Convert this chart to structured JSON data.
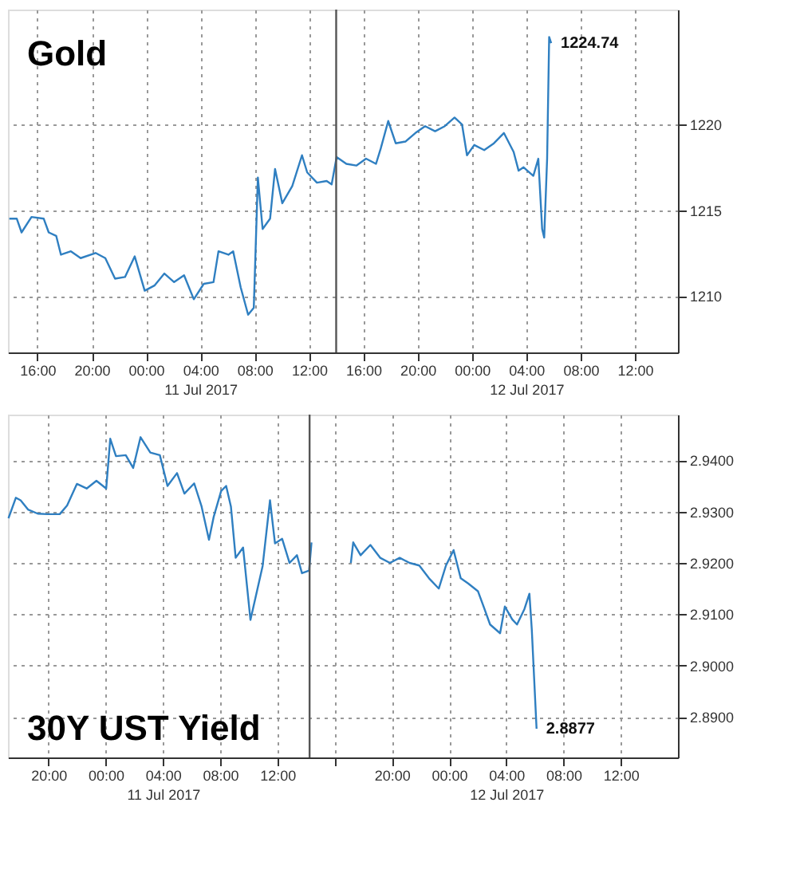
{
  "chart_data": [
    {
      "type": "line",
      "title": "Gold",
      "grid": true,
      "x": [
        "2017-07-10T13:56",
        "2017-07-10T14:29",
        "2017-07-10T14:50",
        "2017-07-10T15:34",
        "2017-07-10T16:28",
        "2017-07-10T16:50",
        "2017-07-10T17:23",
        "2017-07-10T17:44",
        "2017-07-10T18:28",
        "2017-07-10T19:11",
        "2017-07-10T20:17",
        "2017-07-10T21:00",
        "2017-07-10T21:43",
        "2017-07-10T22:27",
        "2017-07-10T23:10",
        "2017-07-10T23:54",
        "2017-07-11T00:37",
        "2017-07-11T01:21",
        "2017-07-11T02:04",
        "2017-07-11T02:48",
        "2017-07-11T03:31",
        "2017-07-11T04:15",
        "2017-07-11T04:58",
        "2017-07-11T05:20",
        "2017-07-11T06:04",
        "2017-07-11T06:25",
        "2017-07-11T06:58",
        "2017-07-11T07:31",
        "2017-07-11T07:56",
        "2017-07-11T08:14",
        "2017-07-11T08:35",
        "2017-07-11T09:08",
        "2017-07-11T09:30",
        "2017-07-11T10:02",
        "2017-07-11T10:46",
        "2017-07-11T11:29",
        "2017-07-11T11:52",
        "2017-07-11T12:35",
        "2017-07-11T13:18",
        "2017-07-11T13:40",
        "2017-07-11T14:02",
        "2017-07-11T14:45",
        "2017-07-11T15:29",
        "2017-07-11T16:12",
        "2017-07-11T16:56",
        "2017-07-11T17:17",
        "2017-07-11T17:50",
        "2017-07-11T18:23",
        "2017-07-11T19:06",
        "2017-07-11T19:50",
        "2017-07-11T20:33",
        "2017-07-11T21:17",
        "2017-07-11T22:00",
        "2017-07-11T22:43",
        "2017-07-11T23:16",
        "2017-07-11T23:38",
        "2017-07-12T00:10",
        "2017-07-12T00:54",
        "2017-07-12T01:37",
        "2017-07-12T02:21",
        "2017-07-12T03:04",
        "2017-07-12T03:26",
        "2017-07-12T03:48",
        "2017-07-12T04:31",
        "2017-07-12T04:53",
        "2017-07-12T05:10",
        "2017-07-12T05:19",
        "2017-07-12T05:32",
        "2017-07-12T05:41",
        "2017-07-12T05:50"
      ],
      "series": [
        {
          "color": "#2f7fc1",
          "values": [
            1214.5,
            1214.5,
            1213.7,
            1214.6,
            1214.5,
            1213.7,
            1213.5,
            1212.4,
            1212.6,
            1212.2,
            1212.5,
            1212.2,
            1211.0,
            1211.1,
            1212.3,
            1210.3,
            1210.6,
            1211.3,
            1210.8,
            1211.2,
            1209.8,
            1210.7,
            1210.8,
            1212.6,
            1212.4,
            1212.6,
            1210.5,
            1208.9,
            1209.3,
            1216.9,
            1213.9,
            1214.5,
            1217.4,
            1215.4,
            1216.4,
            1218.2,
            1217.2,
            1216.6,
            1216.7,
            1216.5,
            1218.1,
            1217.7,
            1217.6,
            1218.0,
            1217.7,
            1218.6,
            1220.2,
            1218.9,
            1219.0,
            1219.5,
            1219.9,
            1219.6,
            1219.9,
            1220.4,
            1220.0,
            1218.2,
            1218.8,
            1218.5,
            1218.9,
            1219.5,
            1218.4,
            1217.3,
            1217.5,
            1217.0,
            1218.0,
            1213.9,
            1213.4,
            1218.0,
            1225.1,
            1224.74
          ]
        }
      ],
      "xlim": [
        "2017-07-10T13:50",
        "2017-07-12T15:10"
      ],
      "xticks": [
        {
          "value": "2017-07-10T16:00",
          "label": "16:00"
        },
        {
          "value": "2017-07-10T20:00",
          "label": "20:00"
        },
        {
          "value": "2017-07-11T00:00",
          "label": "00:00"
        },
        {
          "value": "2017-07-11T04:00",
          "label": "04:00\n11 Jul 2017"
        },
        {
          "value": "2017-07-11T08:00",
          "label": "08:00"
        },
        {
          "value": "2017-07-11T12:00",
          "label": "12:00"
        },
        {
          "value": "2017-07-11T16:00",
          "label": "16:00"
        },
        {
          "value": "2017-07-11T20:00",
          "label": "20:00"
        },
        {
          "value": "2017-07-12T00:00",
          "label": "00:00"
        },
        {
          "value": "2017-07-12T04:00",
          "label": "04:00\n12 Jul 2017"
        },
        {
          "value": "2017-07-12T08:00",
          "label": "08:00"
        },
        {
          "value": "2017-07-12T12:00",
          "label": "12:00"
        }
      ],
      "ylim": [
        1206.7,
        1226.7
      ],
      "yticks": [
        1210,
        1215,
        1220
      ],
      "ref_lines": [
        {
          "axis": "x",
          "value": "2017-07-11T14:00",
          "color": "#555555"
        }
      ],
      "annotations": [
        {
          "text": "1224.74",
          "x": "2017-07-12T05:50",
          "y": 1224.74
        }
      ]
    },
    {
      "type": "line",
      "title": "30Y UST Yield",
      "grid": true,
      "x": [
        "2017-07-10T17:12",
        "2017-07-10T17:43",
        "2017-07-10T18:03",
        "2017-07-10T18:34",
        "2017-07-10T19:15",
        "2017-07-10T19:56",
        "2017-07-10T20:47",
        "2017-07-10T21:18",
        "2017-07-10T21:59",
        "2017-07-10T22:40",
        "2017-07-10T23:21",
        "2017-07-11T00:02",
        "2017-07-11T00:19",
        "2017-07-11T00:43",
        "2017-07-11T01:24",
        "2017-07-11T01:55",
        "2017-07-11T02:26",
        "2017-07-11T03:07",
        "2017-07-11T03:47",
        "2017-07-11T04:19",
        "2017-07-11T04:59",
        "2017-07-11T05:30",
        "2017-07-11T06:11",
        "2017-07-11T06:42",
        "2017-07-11T07:13",
        "2017-07-11T07:33",
        "2017-07-11T08:04",
        "2017-07-11T08:25",
        "2017-07-11T08:45",
        "2017-07-11T09:05",
        "2017-07-11T09:36",
        "2017-07-11T10:07",
        "2017-07-11T10:28",
        "2017-07-11T10:58",
        "2017-07-11T11:29",
        "2017-07-11T11:50",
        "2017-07-11T12:20",
        "2017-07-11T12:51",
        "2017-07-11T13:22",
        "2017-07-11T13:43",
        "2017-07-11T14:13",
        "2017-07-11T14:23",
        "2017-07-11T15:45",
        "2017-07-11T17:08",
        "2017-07-11T17:18",
        "2017-07-11T17:49",
        "2017-07-11T18:30",
        "2017-07-11T19:11",
        "2017-07-11T19:52",
        "2017-07-11T20:33",
        "2017-07-11T21:14",
        "2017-07-11T21:55",
        "2017-07-11T22:36",
        "2017-07-11T23:17",
        "2017-07-11T23:47",
        "2017-07-12T00:19",
        "2017-07-12T00:49",
        "2017-07-12T01:20",
        "2017-07-12T02:01",
        "2017-07-12T02:32",
        "2017-07-12T02:52",
        "2017-07-12T03:34",
        "2017-07-12T03:54",
        "2017-07-12T04:25",
        "2017-07-12T04:45",
        "2017-07-12T05:16",
        "2017-07-12T05:37",
        "2017-07-12T05:47",
        "2017-07-12T06:07"
      ],
      "series": [
        {
          "color": "#2f7fc1",
          "values": [
            2.9287,
            2.9327,
            2.9322,
            2.9304,
            2.9296,
            2.9295,
            2.9295,
            2.9312,
            2.9354,
            2.9345,
            2.936,
            2.9345,
            2.9442,
            2.9408,
            2.941,
            2.9385,
            2.9445,
            2.9415,
            2.941,
            2.935,
            2.9375,
            2.9335,
            2.9355,
            2.931,
            2.9245,
            2.929,
            2.934,
            2.935,
            2.931,
            2.921,
            2.923,
            2.9089,
            2.9132,
            2.9194,
            2.9322,
            2.9238,
            2.9247,
            2.92,
            2.9215,
            2.918,
            2.9185,
            2.924,
            null,
            2.92,
            2.924,
            2.9215,
            2.9235,
            2.921,
            2.92,
            2.921,
            2.92,
            2.9195,
            2.917,
            2.915,
            2.9195,
            2.9225,
            2.917,
            2.916,
            2.9145,
            2.9106,
            2.908,
            2.9063,
            2.9115,
            2.909,
            2.908,
            2.911,
            2.914,
            2.907,
            2.8877
          ]
        }
      ],
      "xlim": [
        "2017-07-10T17:10",
        "2017-07-12T16:00"
      ],
      "xticks": [
        {
          "value": "2017-07-10T20:00",
          "label": "20:00"
        },
        {
          "value": "2017-07-11T00:00",
          "label": "00:00"
        },
        {
          "value": "2017-07-11T04:00",
          "label": "04:00\n11 Jul 2017"
        },
        {
          "value": "2017-07-11T08:00",
          "label": "08:00"
        },
        {
          "value": "2017-07-11T12:00",
          "label": "12:00"
        },
        {
          "value": "2017-07-11T16:00",
          "label": null
        },
        {
          "value": "2017-07-11T20:00",
          "label": "20:00"
        },
        {
          "value": "2017-07-12T00:00",
          "label": "00:00"
        },
        {
          "value": "2017-07-12T04:00",
          "label": "04:00\n12 Jul 2017"
        },
        {
          "value": "2017-07-12T08:00",
          "label": "08:00"
        },
        {
          "value": "2017-07-12T12:00",
          "label": "12:00"
        }
      ],
      "ylim": [
        2.8821,
        2.9489
      ],
      "yticks": [
        {
          "value": 2.94,
          "label": "2.9400"
        },
        {
          "value": 2.93,
          "label": "2.9300"
        },
        {
          "value": 2.92,
          "label": "2.9200"
        },
        {
          "value": 2.91,
          "label": "2.9100"
        },
        {
          "value": 2.9,
          "label": "2.9000"
        },
        {
          "value": 2.89,
          "label": "2.8900"
        }
      ],
      "ref_lines": [
        {
          "axis": "x",
          "value": "2017-07-11T14:15",
          "color": "#555555"
        }
      ],
      "annotations": [
        {
          "text": "2.8877",
          "x": "2017-07-12T06:07",
          "y": 2.8877
        }
      ]
    }
  ]
}
